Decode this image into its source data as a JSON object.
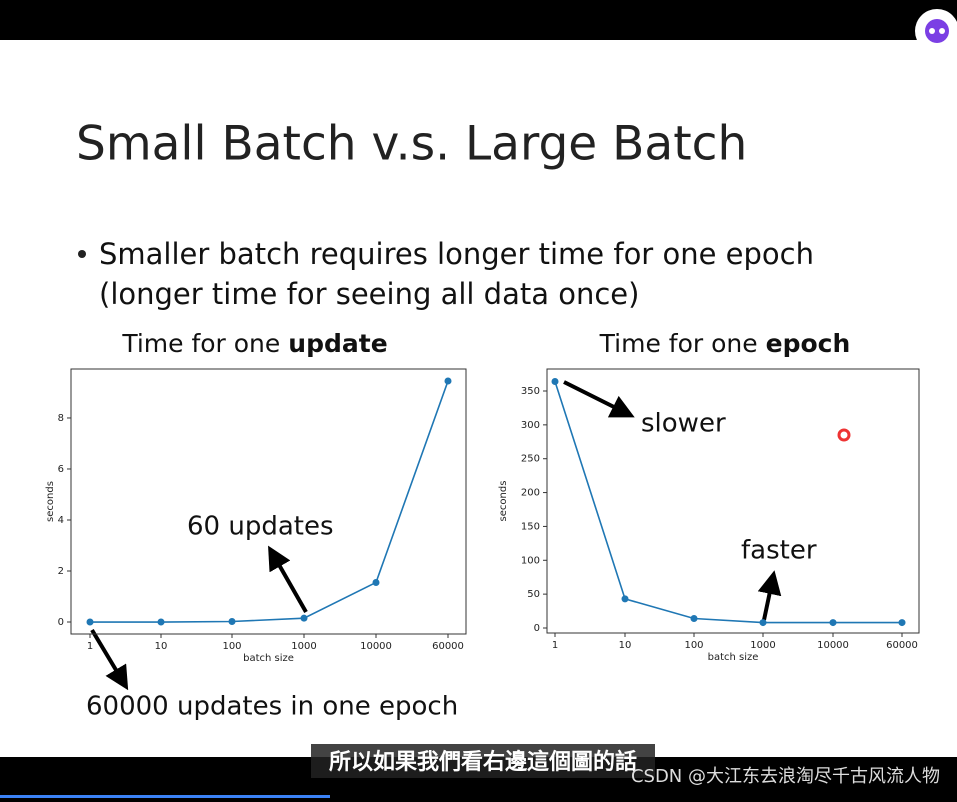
{
  "slide": {
    "title": "Small Batch v.s. Large Batch",
    "bullet_lines": [
      "Smaller batch requires longer time for one epoch",
      "(longer time for seeing all data once)"
    ]
  },
  "chart_data": [
    {
      "type": "line",
      "title_parts": [
        "Time for one",
        "update"
      ],
      "categories": [
        "1",
        "10",
        "100",
        "1000",
        "10000",
        "60000"
      ],
      "values": [
        0,
        0,
        0.02,
        0.15,
        1.55,
        9.45
      ],
      "color": "#1f77b4",
      "ylim": [
        -0.47,
        9.92
      ],
      "yticks": [
        0,
        2,
        4,
        6,
        8
      ],
      "xlabel": "batch size",
      "ylabel": "seconds",
      "annotations": [
        "60 updates",
        "60000 updates in one epoch"
      ]
    },
    {
      "type": "line",
      "title_parts": [
        "Time for one",
        "epoch"
      ],
      "categories": [
        "1",
        "10",
        "100",
        "1000",
        "10000",
        "60000"
      ],
      "values": [
        364,
        43,
        14,
        8,
        8,
        8
      ],
      "color": "#1f77b4",
      "ylim": [
        -7.4,
        382.5
      ],
      "yticks": [
        0,
        50,
        100,
        150,
        200,
        250,
        300,
        350
      ],
      "xlabel": "batch size",
      "ylabel": "seconds",
      "annotations": [
        "slower",
        "faster"
      ]
    }
  ],
  "player": {
    "subtitle": "所以如果我們看右邊這個圖的話",
    "watermark": "CSDN @大江东去浪淘尽千古风流人物"
  }
}
